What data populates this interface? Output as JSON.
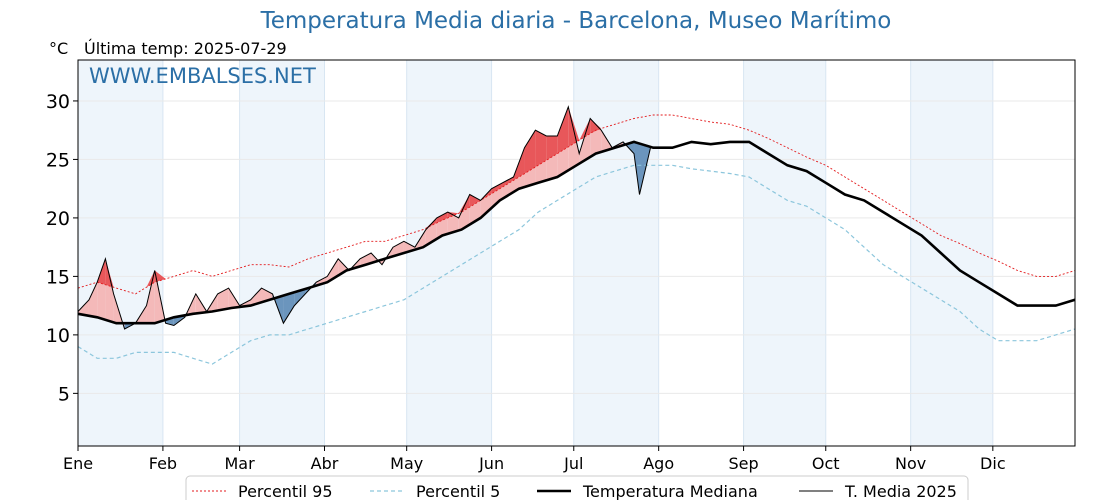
{
  "chart_data": {
    "type": "line",
    "title": "Temperatura Media diaria - Barcelona, Museo Marítimo",
    "subtitle": "Última temp: 2025-07-29",
    "ylabel": "°C",
    "watermark": "WWW.EMBALSES.NET",
    "xlim": [
      1,
      365
    ],
    "ylim": [
      0.5,
      33.5
    ],
    "yticks": [
      5,
      10,
      15,
      20,
      25,
      30
    ],
    "months": [
      "Ene",
      "Feb",
      "Mar",
      "Abr",
      "May",
      "Jun",
      "Jul",
      "Ago",
      "Sep",
      "Oct",
      "Nov",
      "Dic"
    ],
    "month_start_days": [
      1,
      32,
      60,
      91,
      121,
      152,
      182,
      213,
      244,
      274,
      305,
      335
    ],
    "grid": true,
    "legend_placement": "bottom-center",
    "colors": {
      "p95": "#e31a1c",
      "p5": "#8cc6dc",
      "median": "#000000",
      "media2025": "#000000",
      "above_p95": "#e8575a",
      "above_median": "#f4b9b9",
      "below_median": "#6b95bd",
      "month_band": "#eef5fb",
      "title": "#2b6fa6"
    },
    "series": [
      {
        "name": "Percentil 95",
        "x": [
          1,
          8,
          15,
          22,
          29,
          36,
          43,
          50,
          57,
          64,
          71,
          78,
          85,
          92,
          99,
          106,
          113,
          120,
          127,
          134,
          141,
          148,
          155,
          162,
          169,
          176,
          183,
          190,
          197,
          204,
          211,
          218,
          225,
          232,
          239,
          246,
          253,
          260,
          267,
          274,
          281,
          288,
          295,
          302,
          309,
          316,
          323,
          330,
          337,
          344,
          351,
          358,
          365
        ],
        "values": [
          14.0,
          14.5,
          14.0,
          13.5,
          14.5,
          15.0,
          15.5,
          15.0,
          15.5,
          16.0,
          16.0,
          15.8,
          16.5,
          17.0,
          17.5,
          18.0,
          18.0,
          18.5,
          19.0,
          19.8,
          20.5,
          21.5,
          22.5,
          23.5,
          24.5,
          25.5,
          26.5,
          27.5,
          28.0,
          28.5,
          28.8,
          28.8,
          28.5,
          28.2,
          28.0,
          27.5,
          26.8,
          26.0,
          25.2,
          24.5,
          23.5,
          22.5,
          21.5,
          20.5,
          19.5,
          18.5,
          17.8,
          17.0,
          16.3,
          15.5,
          15.0,
          15.0,
          15.5
        ]
      },
      {
        "name": "Percentil 5",
        "x": [
          1,
          8,
          15,
          22,
          29,
          36,
          43,
          50,
          57,
          64,
          71,
          78,
          85,
          92,
          99,
          106,
          113,
          120,
          127,
          134,
          141,
          148,
          155,
          162,
          169,
          176,
          183,
          190,
          197,
          204,
          211,
          218,
          225,
          232,
          239,
          246,
          253,
          260,
          267,
          274,
          281,
          288,
          295,
          302,
          309,
          316,
          323,
          330,
          337,
          344,
          351,
          358,
          365
        ],
        "values": [
          9.0,
          8.0,
          8.0,
          8.5,
          8.5,
          8.5,
          8.0,
          7.5,
          8.5,
          9.5,
          10.0,
          10.0,
          10.5,
          11.0,
          11.5,
          12.0,
          12.5,
          13.0,
          14.0,
          15.0,
          16.0,
          17.0,
          18.0,
          19.0,
          20.5,
          21.5,
          22.5,
          23.5,
          24.0,
          24.5,
          24.5,
          24.5,
          24.2,
          24.0,
          23.8,
          23.5,
          22.5,
          21.5,
          21.0,
          20.0,
          19.0,
          17.5,
          16.0,
          15.0,
          14.0,
          13.0,
          12.0,
          10.5,
          9.5,
          9.5,
          9.5,
          10.0,
          10.5
        ]
      },
      {
        "name": "Temperatura Mediana",
        "x": [
          1,
          8,
          15,
          22,
          29,
          36,
          43,
          50,
          57,
          64,
          71,
          78,
          85,
          92,
          99,
          106,
          113,
          120,
          127,
          134,
          141,
          148,
          155,
          162,
          169,
          176,
          183,
          190,
          197,
          204,
          211,
          218,
          225,
          232,
          239,
          246,
          253,
          260,
          267,
          274,
          281,
          288,
          295,
          302,
          309,
          316,
          323,
          330,
          337,
          344,
          351,
          358,
          365
        ],
        "values": [
          11.8,
          11.5,
          11.0,
          11.0,
          11.0,
          11.5,
          11.8,
          12.0,
          12.3,
          12.5,
          13.0,
          13.5,
          14.0,
          14.5,
          15.5,
          16.0,
          16.5,
          17.0,
          17.5,
          18.5,
          19.0,
          20.0,
          21.5,
          22.5,
          23.0,
          23.5,
          24.5,
          25.5,
          26.0,
          26.5,
          26.0,
          26.0,
          26.5,
          26.3,
          26.5,
          26.5,
          25.5,
          24.5,
          24.0,
          23.0,
          22.0,
          21.5,
          20.5,
          19.5,
          18.5,
          17.0,
          15.5,
          14.5,
          13.5,
          12.5,
          12.5,
          12.5,
          13.0
        ]
      },
      {
        "name": "T. Media 2025",
        "x": [
          1,
          5,
          8,
          11,
          14,
          18,
          22,
          26,
          29,
          33,
          36,
          40,
          44,
          48,
          52,
          56,
          60,
          64,
          68,
          72,
          76,
          80,
          84,
          88,
          92,
          96,
          100,
          104,
          108,
          112,
          116,
          120,
          124,
          128,
          132,
          136,
          140,
          144,
          148,
          152,
          156,
          160,
          164,
          168,
          172,
          176,
          180,
          184,
          188,
          192,
          196,
          200,
          204,
          206,
          210
        ],
        "values": [
          12.0,
          13.0,
          14.5,
          16.5,
          13.5,
          10.5,
          11.0,
          12.5,
          15.5,
          11.0,
          10.8,
          11.5,
          13.5,
          12.0,
          13.5,
          14.0,
          12.5,
          13.0,
          14.0,
          13.5,
          11.0,
          12.5,
          13.5,
          14.5,
          15.0,
          16.5,
          15.5,
          16.5,
          17.0,
          16.0,
          17.5,
          18.0,
          17.5,
          19.0,
          20.0,
          20.5,
          20.0,
          22.0,
          21.5,
          22.5,
          23.0,
          23.5,
          26.0,
          27.5,
          27.0,
          27.0,
          29.5,
          25.5,
          28.5,
          27.5,
          26.0,
          26.5,
          25.5,
          22.0,
          26.0
        ]
      }
    ]
  }
}
